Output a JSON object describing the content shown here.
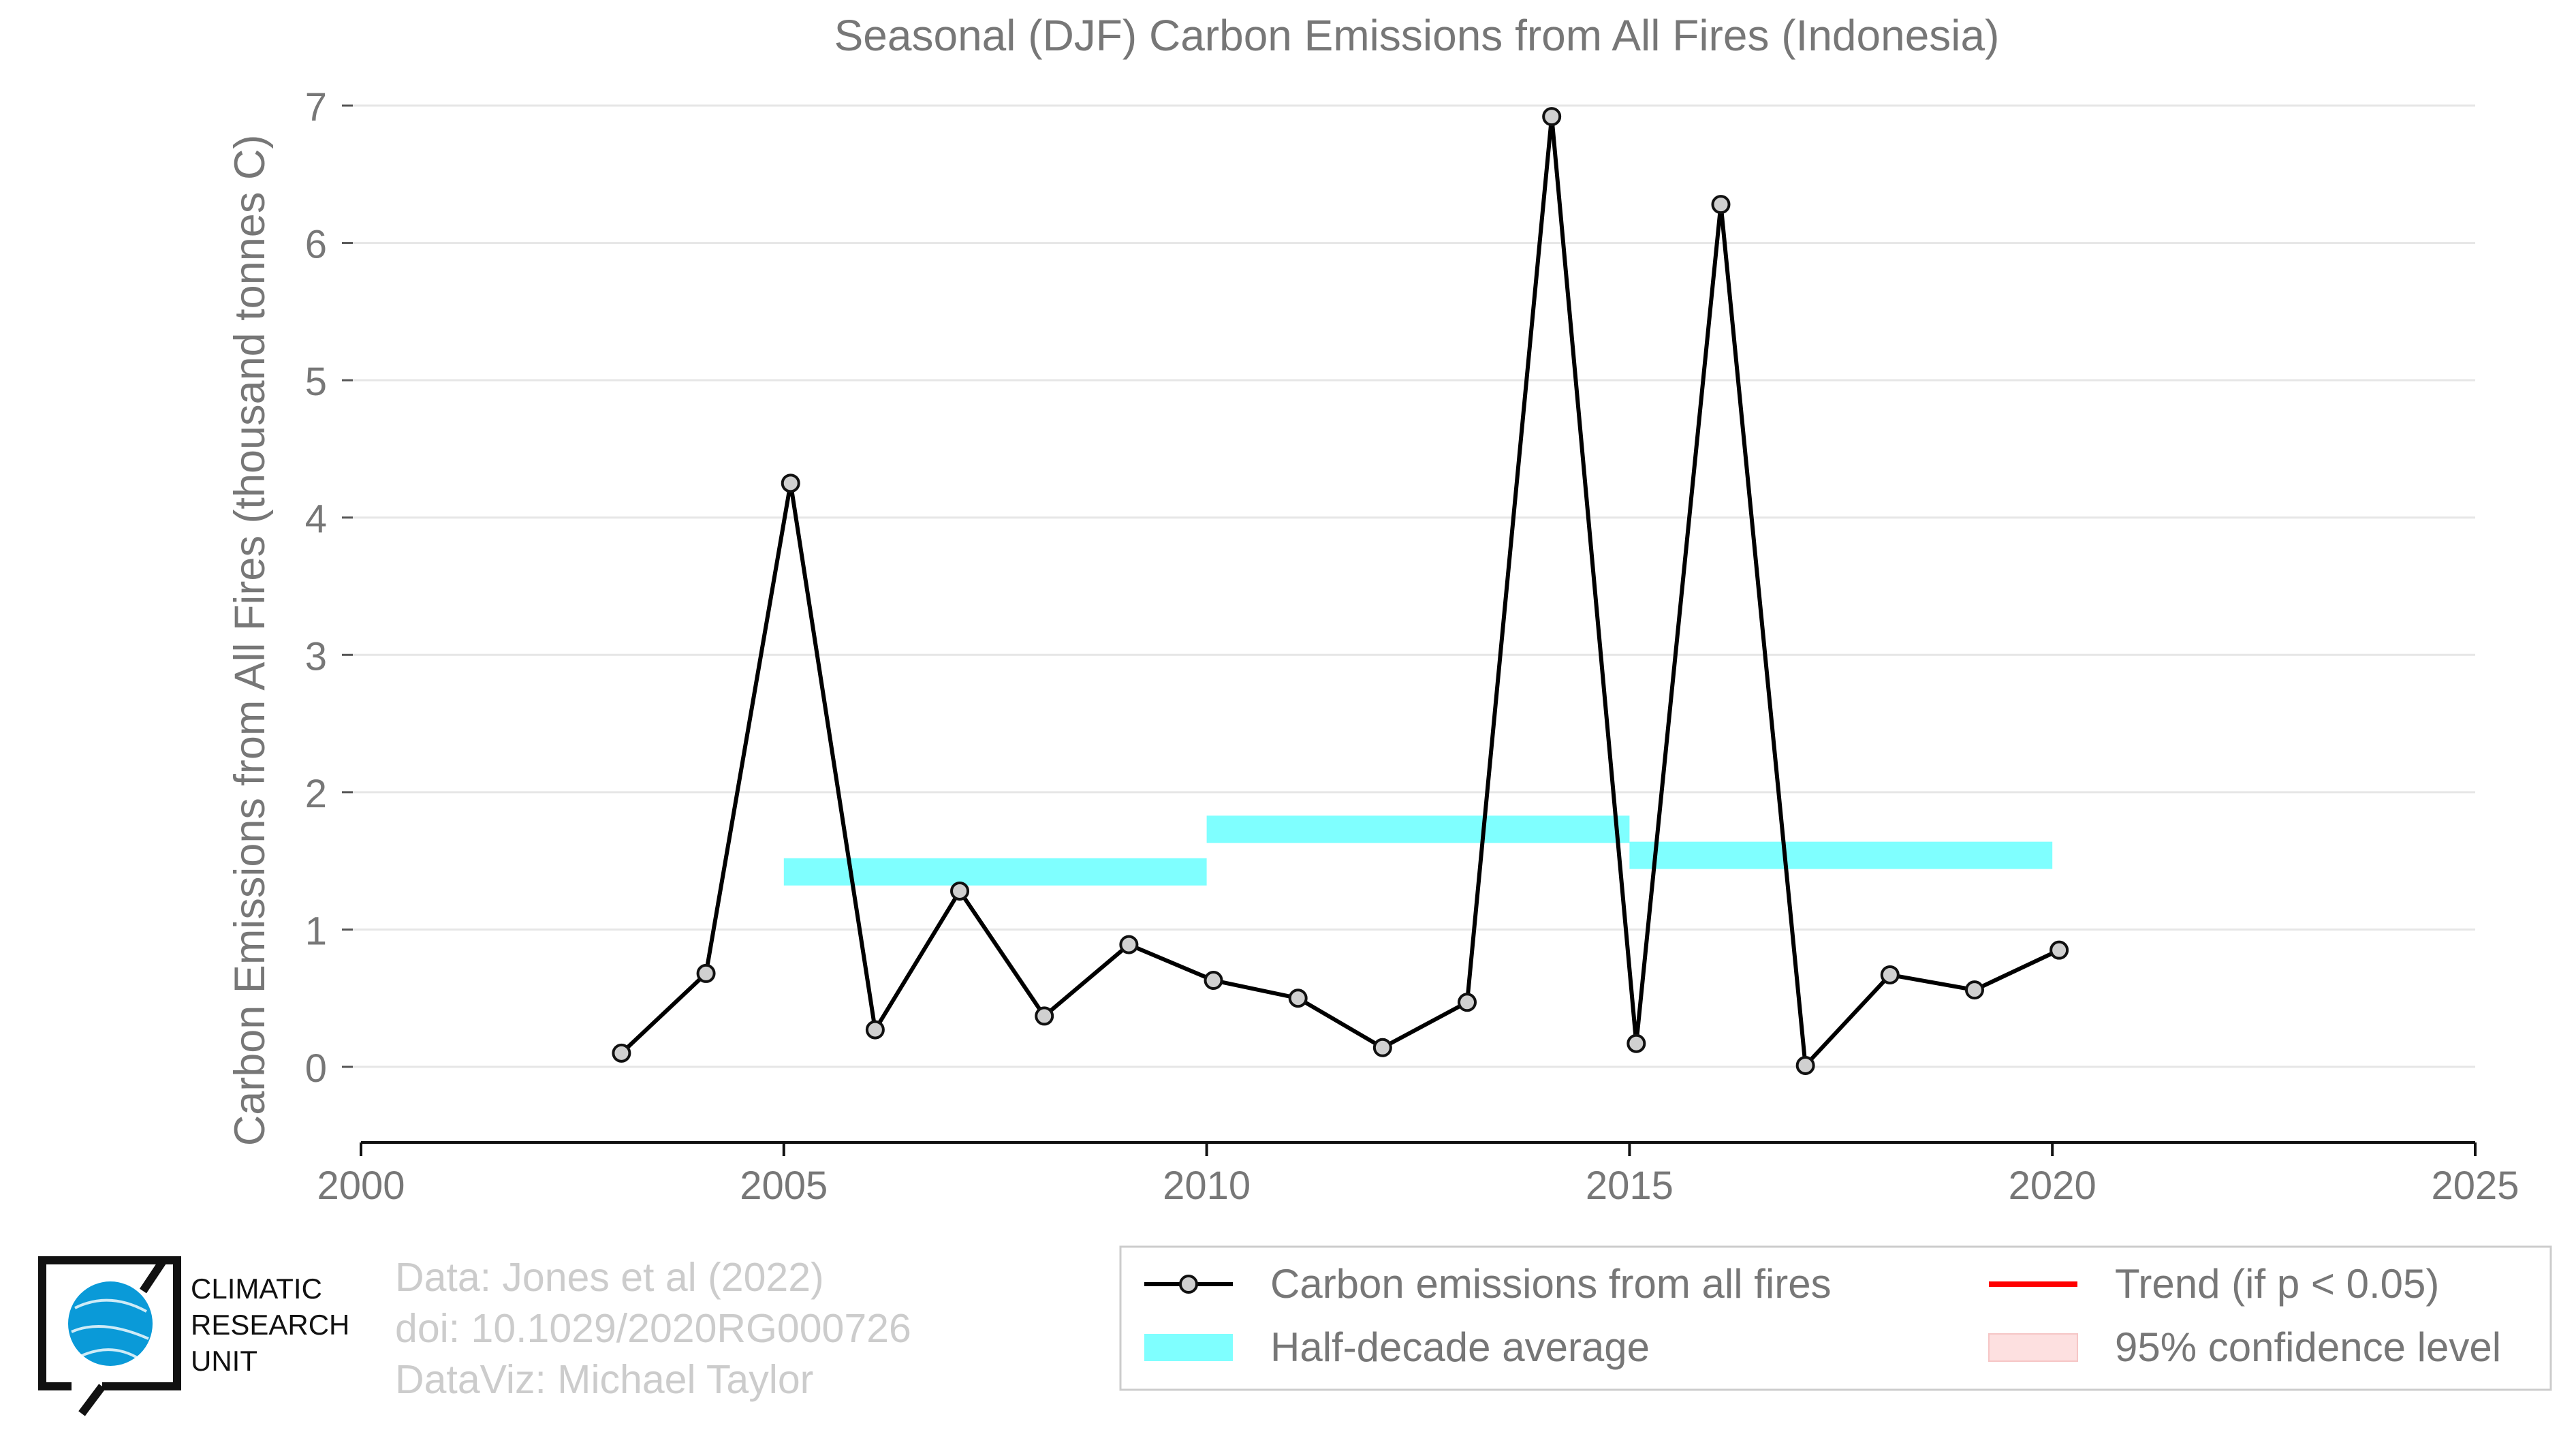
{
  "chart_data": {
    "type": "line",
    "title": "Seasonal (DJF) Carbon Emissions from All Fires (Indonesia)",
    "xlabel": "",
    "ylabel": "Carbon Emissions from All Fires (thousand tonnes C)",
    "xlim": [
      2000,
      2025
    ],
    "ylim": [
      -0.5,
      7.1
    ],
    "x_ticks": [
      "2000",
      "2005",
      "2010",
      "2015",
      "2020",
      "2025"
    ],
    "y_ticks": [
      "0",
      "1",
      "2",
      "3",
      "4",
      "5",
      "6",
      "7"
    ],
    "grid": "horizontal",
    "legend_position": "bottom-right",
    "series": [
      {
        "name": "Carbon emissions from all fires",
        "color": "#000000",
        "marker_fill": "#d0d0d0",
        "x": [
          2003,
          2004,
          2005,
          2006,
          2007,
          2008,
          2009,
          2010,
          2011,
          2012,
          2013,
          2014,
          2015,
          2016,
          2017,
          2018,
          2019,
          2020
        ],
        "values": [
          0.1,
          0.68,
          4.25,
          0.27,
          1.28,
          0.37,
          0.89,
          0.63,
          0.5,
          0.14,
          0.47,
          6.92,
          0.17,
          6.28,
          0.01,
          0.67,
          0.56,
          0.85
        ]
      },
      {
        "name": "Half-decade average",
        "type": "step",
        "color": "#7fffff",
        "segments": [
          {
            "x0": 2005,
            "x1": 2010,
            "value": 1.42
          },
          {
            "x0": 2010,
            "x1": 2015,
            "value": 1.73
          },
          {
            "x0": 2015,
            "x1": 2020,
            "value": 1.54
          }
        ]
      }
    ],
    "legend": [
      {
        "label": "Carbon emissions from all fires",
        "style": "line-marker",
        "color": "#000000"
      },
      {
        "label": "Trend (if p < 0.05)",
        "style": "line",
        "color": "#ff0000"
      },
      {
        "label": "Half-decade average",
        "style": "band",
        "color": "#7fffff"
      },
      {
        "label": "95% confidence level",
        "style": "band",
        "color": "#fde0e0"
      }
    ]
  },
  "credits": {
    "line1": "Data: Jones et al (2022)",
    "line2": "doi: 10.1029/2020RG000726",
    "line3": "DataViz: Michael Taylor"
  },
  "logo": {
    "line1": "CLIMATIC",
    "line2": "RESEARCH",
    "line3": "UNIT",
    "globe_color": "#0a9ad8"
  }
}
